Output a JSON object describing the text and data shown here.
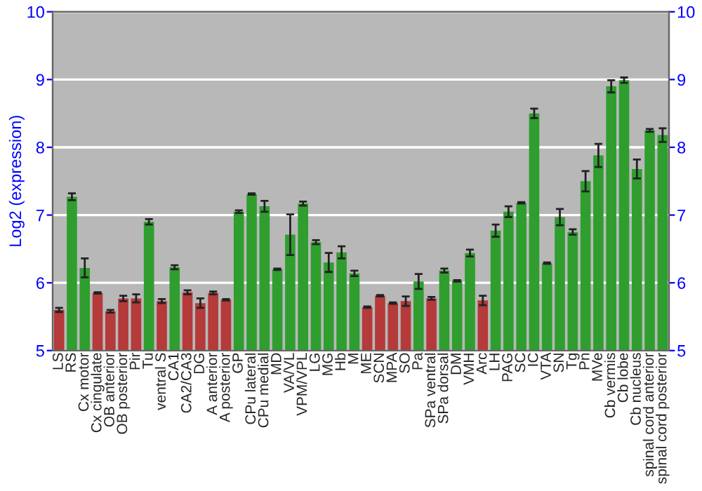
{
  "chart_data": {
    "type": "bar",
    "ylabel": "Log2 (expression)",
    "categories": [
      "LS",
      "RS",
      "Cx motor",
      "Cx cingulate",
      "OB anterior",
      "OB posterior",
      "Pir",
      "Tu",
      "ventral S",
      "CA1",
      "CA2/CA3",
      "DG",
      "A anterior",
      "A posterior",
      "GP",
      "CPu lateral",
      "CPu medial",
      "MD",
      "VA/VL",
      "VPM/VPL",
      "LG",
      "MG",
      "Hb",
      "M",
      "ME",
      "SCN",
      "MPA",
      "SO",
      "Pa",
      "SPa ventral",
      "SPa dorsal",
      "DM",
      "VMH",
      "Arc",
      "LH",
      "PAG",
      "SC",
      "IC",
      "VTA",
      "SN",
      "Tg",
      "Pn",
      "MVe",
      "Cb vermis",
      "Cb lobe",
      "Cb nucleus",
      "spinal cord anterior",
      "spinal cord posterior"
    ],
    "values": [
      5.6,
      7.27,
      6.22,
      5.85,
      5.58,
      5.77,
      5.77,
      6.9,
      5.73,
      6.23,
      5.86,
      5.7,
      5.85,
      5.75,
      7.05,
      7.31,
      7.13,
      6.2,
      6.71,
      7.17,
      6.6,
      6.3,
      6.45,
      6.14,
      5.64,
      5.81,
      5.7,
      5.73,
      6.02,
      5.77,
      6.18,
      6.03,
      6.44,
      5.74,
      6.77,
      7.05,
      7.18,
      8.5,
      6.29,
      6.97,
      6.75,
      7.5,
      7.88,
      8.9,
      8.99,
      7.68,
      8.25,
      8.18
    ],
    "errors": [
      0.03,
      0.05,
      0.14,
      0.01,
      0.02,
      0.04,
      0.06,
      0.04,
      0.03,
      0.03,
      0.03,
      0.07,
      0.02,
      0.01,
      0.02,
      0.01,
      0.08,
      0.01,
      0.3,
      0.03,
      0.03,
      0.14,
      0.09,
      0.04,
      0.01,
      0.01,
      0.01,
      0.07,
      0.11,
      0.02,
      0.03,
      0.01,
      0.05,
      0.07,
      0.09,
      0.08,
      0.01,
      0.07,
      0.01,
      0.12,
      0.04,
      0.15,
      0.17,
      0.09,
      0.04,
      0.14,
      0.02,
      0.1
    ],
    "colors": [
      "#b53a3a",
      "#2f9e2f",
      "#2f9e2f",
      "#b53a3a",
      "#b53a3a",
      "#b53a3a",
      "#b53a3a",
      "#2f9e2f",
      "#b53a3a",
      "#2f9e2f",
      "#b53a3a",
      "#b53a3a",
      "#b53a3a",
      "#b53a3a",
      "#2f9e2f",
      "#2f9e2f",
      "#2f9e2f",
      "#2f9e2f",
      "#2f9e2f",
      "#2f9e2f",
      "#2f9e2f",
      "#2f9e2f",
      "#2f9e2f",
      "#2f9e2f",
      "#b53a3a",
      "#b53a3a",
      "#b53a3a",
      "#b53a3a",
      "#2f9e2f",
      "#b53a3a",
      "#2f9e2f",
      "#2f9e2f",
      "#2f9e2f",
      "#b53a3a",
      "#2f9e2f",
      "#2f9e2f",
      "#2f9e2f",
      "#2f9e2f",
      "#2f9e2f",
      "#2f9e2f",
      "#2f9e2f",
      "#2f9e2f",
      "#2f9e2f",
      "#2f9e2f",
      "#2f9e2f",
      "#2f9e2f",
      "#2f9e2f",
      "#2f9e2f"
    ],
    "ylim": [
      5,
      10
    ],
    "yticks": [
      5,
      6,
      7,
      8,
      9,
      10
    ],
    "y2lim": [
      5,
      10
    ],
    "y2ticks": [
      5,
      6,
      7,
      8,
      9,
      10
    ],
    "grid": "y"
  }
}
